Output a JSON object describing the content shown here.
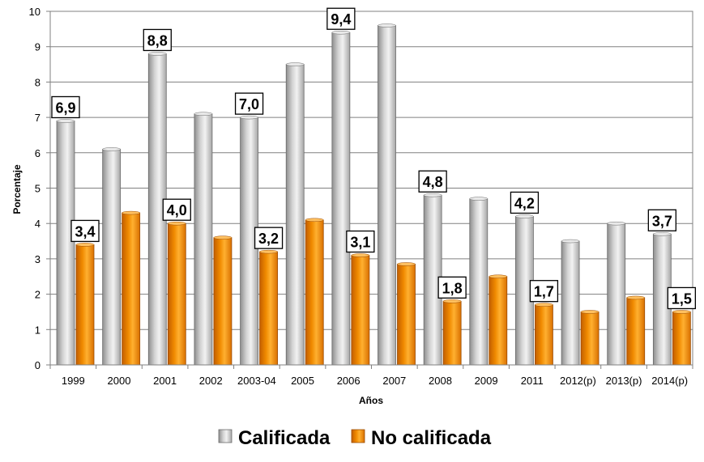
{
  "chart_data": {
    "type": "bar",
    "title": "",
    "xlabel": "Años",
    "ylabel": "Porcentaje",
    "ylim": [
      0,
      10
    ],
    "yticks": [
      "0",
      "1",
      "2",
      "3",
      "4",
      "5",
      "6",
      "7",
      "8",
      "9",
      "10"
    ],
    "categories": [
      "1999",
      "2000",
      "2001",
      "2002",
      "2003-04",
      "2005",
      "2006",
      "2007",
      "2008",
      "2009",
      "2011",
      "2012(p)",
      "2013(p)",
      "2014(p)"
    ],
    "series": [
      {
        "name": "Calificada",
        "color": "#bdbdbd",
        "values": [
          6.9,
          6.1,
          8.8,
          7.1,
          7.0,
          8.5,
          9.4,
          9.6,
          4.8,
          4.7,
          4.2,
          3.5,
          4.0,
          3.7
        ],
        "labels": [
          "6,9",
          null,
          "8,8",
          null,
          "7,0",
          null,
          "9,4",
          null,
          "4,8",
          null,
          "4,2",
          null,
          null,
          "3,7"
        ]
      },
      {
        "name": "No calificada",
        "color": "#f28c00",
        "values": [
          3.4,
          4.3,
          4.0,
          3.6,
          3.2,
          4.1,
          3.1,
          2.85,
          1.8,
          2.5,
          1.7,
          1.5,
          1.9,
          1.5
        ],
        "labels": [
          "3,4",
          null,
          "4,0",
          null,
          "3,2",
          null,
          "3,1",
          null,
          "1,8",
          null,
          "1,7",
          null,
          null,
          "1,5"
        ]
      }
    ],
    "grid": true,
    "legend_position": "bottom"
  }
}
